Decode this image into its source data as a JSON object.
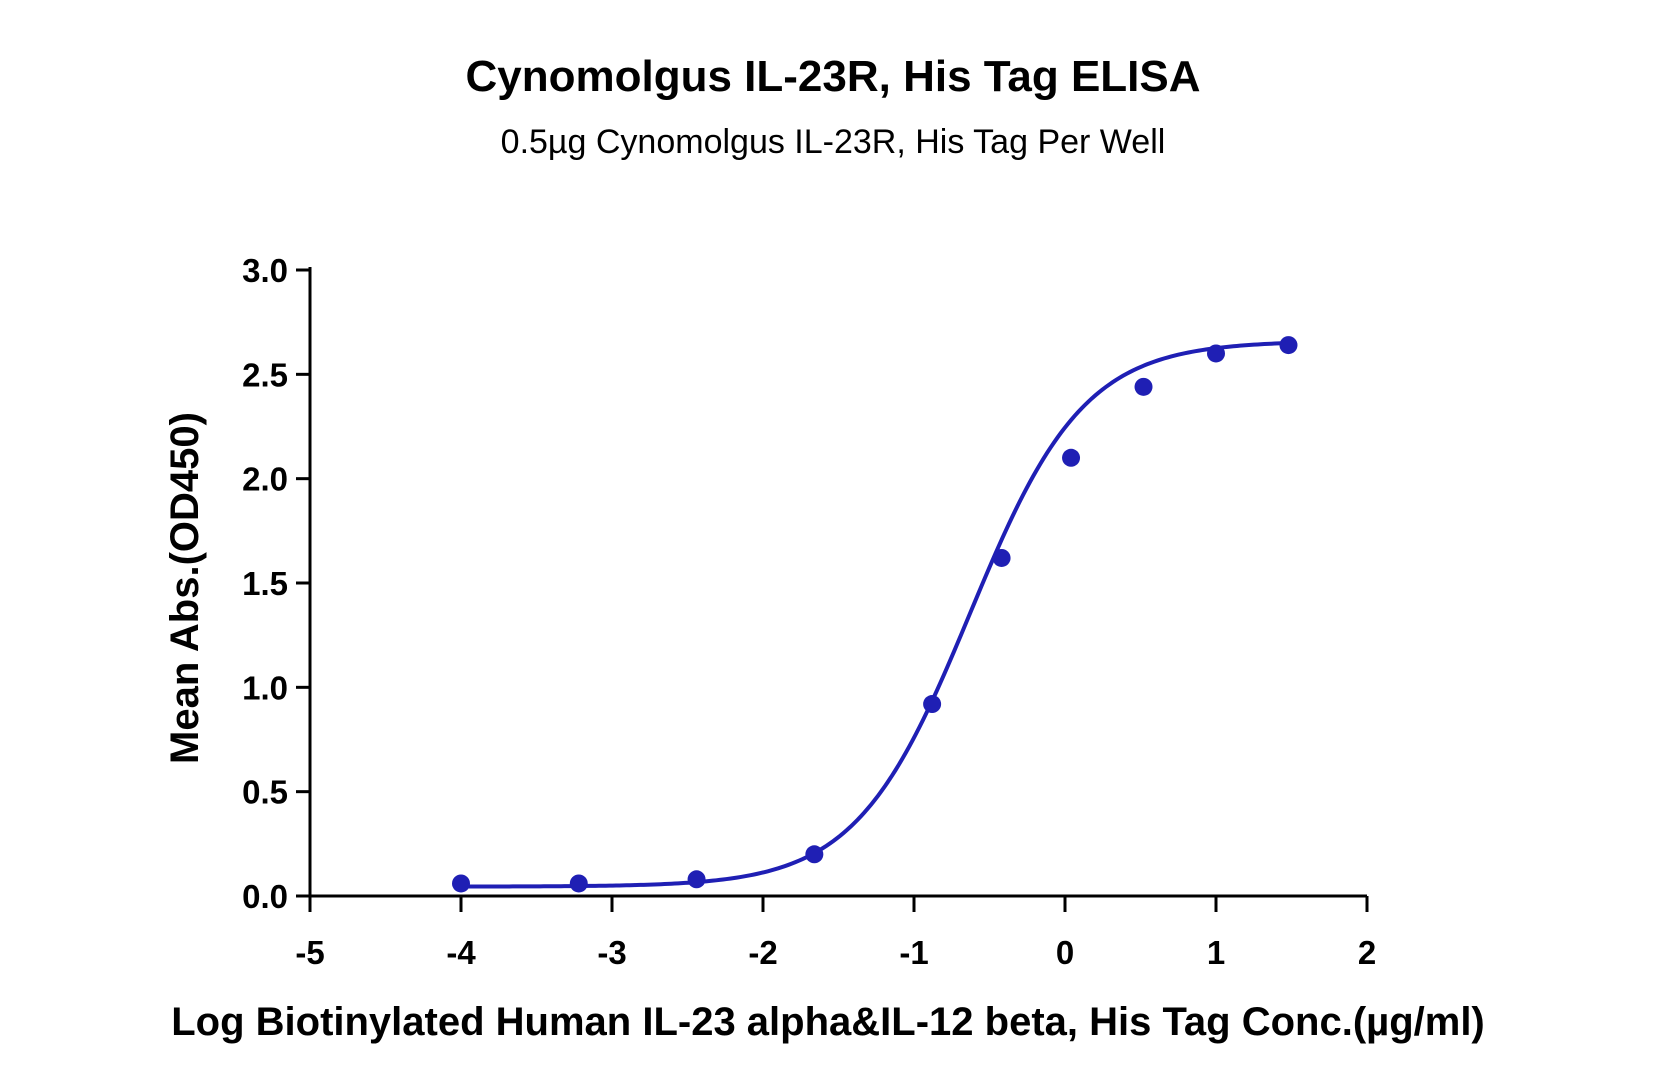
{
  "chart_data": {
    "type": "scatter",
    "title": "Cynomolgus IL-23R, His Tag ELISA",
    "subtitle": "0.5µg Cynomolgus IL-23R, His Tag Per Well",
    "xlabel": "Log Biotinylated Human IL-23 alpha&IL-12 beta, His Tag Conc.(µg/ml)",
    "ylabel": "Mean Abs.(OD450)",
    "xlim": [
      -5,
      2
    ],
    "ylim": [
      0,
      3.0
    ],
    "x_ticks": [
      "-5",
      "-4",
      "-3",
      "-2",
      "-1",
      "0",
      "1",
      "2"
    ],
    "y_ticks": [
      "0.0",
      "0.5",
      "1.0",
      "1.5",
      "2.0",
      "2.5",
      "3.0"
    ],
    "grid": false,
    "series": [
      {
        "color": "#1f1fb4",
        "marker": "circle",
        "fit": "four-parameter logistic curve",
        "x": [
          -4.0,
          -3.22,
          -2.44,
          -1.66,
          -0.88,
          -0.42,
          0.04,
          0.52,
          1.0,
          1.48
        ],
        "y": [
          0.06,
          0.06,
          0.08,
          0.2,
          0.92,
          1.62,
          2.1,
          2.44,
          2.6,
          2.64
        ]
      }
    ]
  }
}
